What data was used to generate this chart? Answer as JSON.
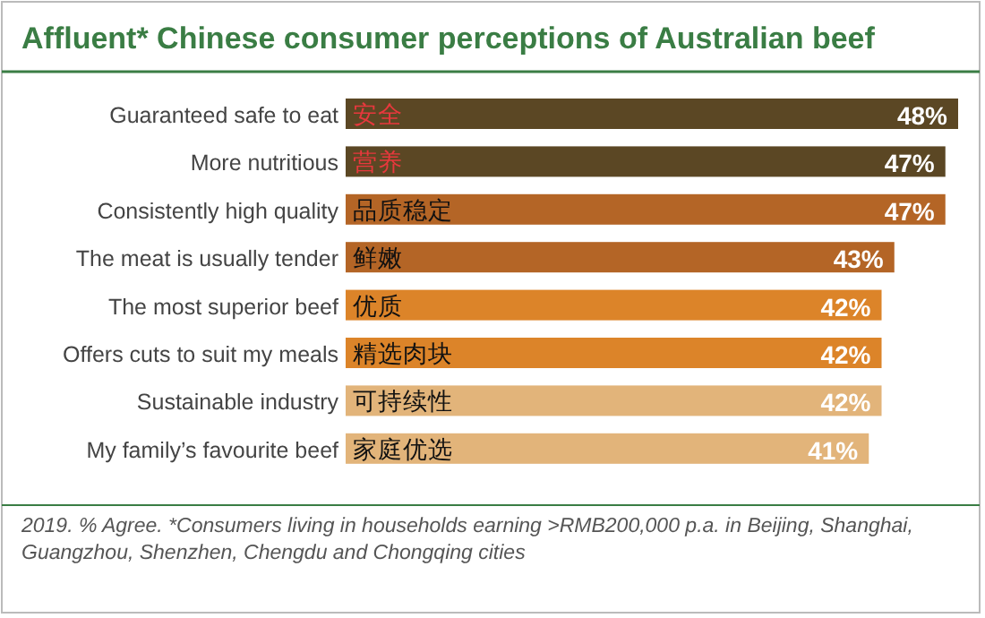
{
  "chart_data": {
    "type": "bar",
    "orientation": "horizontal",
    "title": "Affluent* Chinese consumer perceptions of Australian beef",
    "categories": [
      "Guaranteed safe to eat",
      "More nutritious",
      "Consistently high quality",
      "The meat is usually tender",
      "The most superior beef",
      "Offers cuts to suit my meals",
      "Sustainable industry",
      "My family’s favourite beef"
    ],
    "values": [
      48,
      47,
      47,
      43,
      42,
      42,
      42,
      41
    ],
    "value_labels": [
      "48%",
      "47%",
      "47%",
      "43%",
      "42%",
      "42%",
      "42%",
      "41%"
    ],
    "colors": [
      "#5b4724",
      "#5b4724",
      "#b46526",
      "#b46526",
      "#dc8429",
      "#dc8429",
      "#e2b47a",
      "#e2b47a"
    ],
    "annotations": [
      {
        "text": "安全",
        "y": "Guaranteed safe to eat"
      },
      {
        "text": "营养",
        "y": "More nutritious"
      },
      {
        "text": "品质稳定",
        "y": "Consistently high quality"
      },
      {
        "text": "鲜嫩",
        "y": "The meat is usually tender"
      },
      {
        "text": "优质",
        "y": "The most superior beef"
      },
      {
        "text": "精选肉块",
        "y": "Offers cuts to suit my meals"
      },
      {
        "text": "可持续性",
        "y": "Sustainable industry"
      },
      {
        "text": "家庭优选",
        "y": "My family’s favourite beef"
      },
      "2019. % Agree.  *Consumers living in households earning >RMB200,000 p.a. in Beijing, Shanghai, Guangzhou, Shenzhen, Chengdu and Chongqing cities"
    ],
    "grid": false
  }
}
